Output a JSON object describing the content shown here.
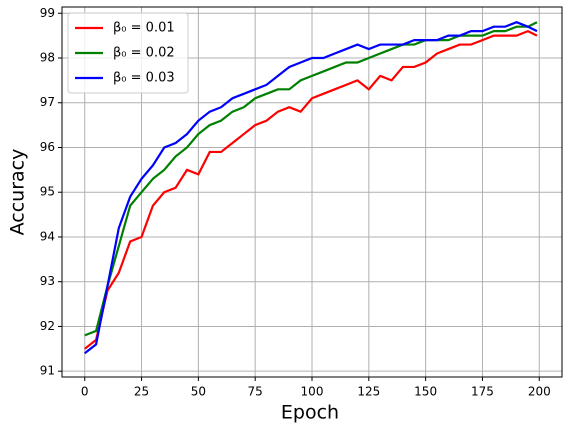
{
  "chart_data": {
    "type": "line",
    "xlabel": "Epoch",
    "ylabel": "Accuracy",
    "x": [
      0,
      5,
      10,
      15,
      20,
      25,
      30,
      35,
      40,
      45,
      50,
      55,
      60,
      65,
      70,
      75,
      80,
      85,
      90,
      95,
      100,
      105,
      110,
      115,
      120,
      125,
      130,
      135,
      140,
      145,
      150,
      155,
      160,
      165,
      170,
      175,
      180,
      185,
      190,
      195,
      199
    ],
    "series": [
      {
        "name": "β₀ = 0.01",
        "color": "#ff0000",
        "values": [
          91.5,
          91.7,
          92.8,
          93.2,
          93.9,
          94.0,
          94.7,
          95.0,
          95.1,
          95.5,
          95.4,
          95.9,
          95.9,
          96.1,
          96.3,
          96.5,
          96.6,
          96.8,
          96.9,
          96.8,
          97.1,
          97.2,
          97.3,
          97.4,
          97.5,
          97.3,
          97.6,
          97.5,
          97.8,
          97.8,
          97.9,
          98.1,
          98.2,
          98.3,
          98.3,
          98.4,
          98.5,
          98.5,
          98.5,
          98.6,
          98.5
        ]
      },
      {
        "name": "β₀ = 0.02",
        "color": "#008000",
        "values": [
          91.8,
          91.9,
          92.9,
          93.8,
          94.7,
          95.0,
          95.3,
          95.5,
          95.8,
          96.0,
          96.3,
          96.5,
          96.6,
          96.8,
          96.9,
          97.1,
          97.2,
          97.3,
          97.3,
          97.5,
          97.6,
          97.7,
          97.8,
          97.9,
          97.9,
          98.0,
          98.1,
          98.2,
          98.3,
          98.3,
          98.4,
          98.4,
          98.4,
          98.5,
          98.5,
          98.5,
          98.6,
          98.6,
          98.7,
          98.7,
          98.8
        ]
      },
      {
        "name": "β₀ = 0.03",
        "color": "#0000ff",
        "values": [
          91.4,
          91.6,
          92.9,
          94.2,
          94.9,
          95.3,
          95.6,
          96.0,
          96.1,
          96.3,
          96.6,
          96.8,
          96.9,
          97.1,
          97.2,
          97.3,
          97.4,
          97.6,
          97.8,
          97.9,
          98.0,
          98.0,
          98.1,
          98.2,
          98.3,
          98.2,
          98.3,
          98.3,
          98.3,
          98.4,
          98.4,
          98.4,
          98.5,
          98.5,
          98.6,
          98.6,
          98.7,
          98.7,
          98.8,
          98.7,
          98.6
        ]
      }
    ],
    "xlim": [
      -10,
      210
    ],
    "xticks": [
      0,
      25,
      50,
      75,
      100,
      125,
      150,
      175,
      200
    ],
    "ylim": [
      90.87,
      99.14
    ],
    "yticks": [
      91,
      92,
      93,
      94,
      95,
      96,
      97,
      98,
      99
    ],
    "grid": true,
    "legend": "upper-left"
  }
}
